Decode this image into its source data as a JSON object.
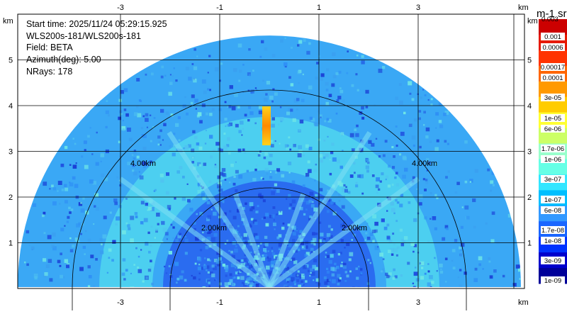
{
  "info": {
    "start_time": "Start time: 2025/11/24 05:29:15.925",
    "instrument": "WLS200s-181/WLS200s-181",
    "field": "Field: BETA",
    "azimuth": "Azimuth(deg): 5.00",
    "nrays": "NRays: 178"
  },
  "axes": {
    "unit": "km",
    "x_ticks": [
      "-3",
      "-1",
      "1",
      "3"
    ],
    "y_ticks": [
      "1",
      "2",
      "3",
      "4",
      "5"
    ]
  },
  "range_rings": [
    {
      "label": "2.00km"
    },
    {
      "label": "4.00km"
    }
  ],
  "colorbar": {
    "title": "m-1 sr-1",
    "top_label": "0.003",
    "labels": [
      "0.001",
      "0.0006",
      "0.00017",
      "0.0001",
      "3e-05",
      "1e-05",
      "6e-06",
      "1.7e-06",
      "1e-06",
      "3e-07",
      "1e-07",
      "6e-08",
      "1.7e-08",
      "1e-08",
      "3e-09",
      "1e-09"
    ],
    "colors": [
      "#cc0000",
      "#e61a00",
      "#ff3300",
      "#ff6600",
      "#ff9900",
      "#ffcc00",
      "#ffff33",
      "#ccff66",
      "#99ffcc",
      "#66ffe6",
      "#33e6ff",
      "#00bfff",
      "#3399ff",
      "#1a66ff",
      "#0033ff",
      "#0000cc",
      "#000099"
    ]
  },
  "background_colors": {
    "far": "#3aa8f5",
    "band": "#50d6ee",
    "near": "#2a6cf0",
    "spike": "#ff9a00"
  }
}
